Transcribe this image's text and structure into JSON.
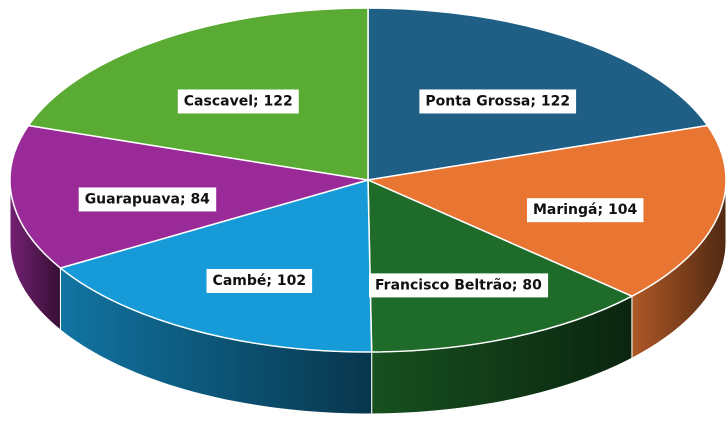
{
  "chart_data": {
    "type": "pie3d",
    "categories": [
      "Ponta Grossa",
      "Maringá",
      "Francisco Beltrão",
      "Cambé",
      "Guarapuava",
      "Cascavel"
    ],
    "values": [
      122,
      104,
      80,
      102,
      84,
      122
    ],
    "colors": [
      "#1f5f86",
      "#e87532",
      "#1e6b2a",
      "#169bd8",
      "#9a2a98",
      "#5aab33"
    ],
    "label_separator": "; "
  }
}
